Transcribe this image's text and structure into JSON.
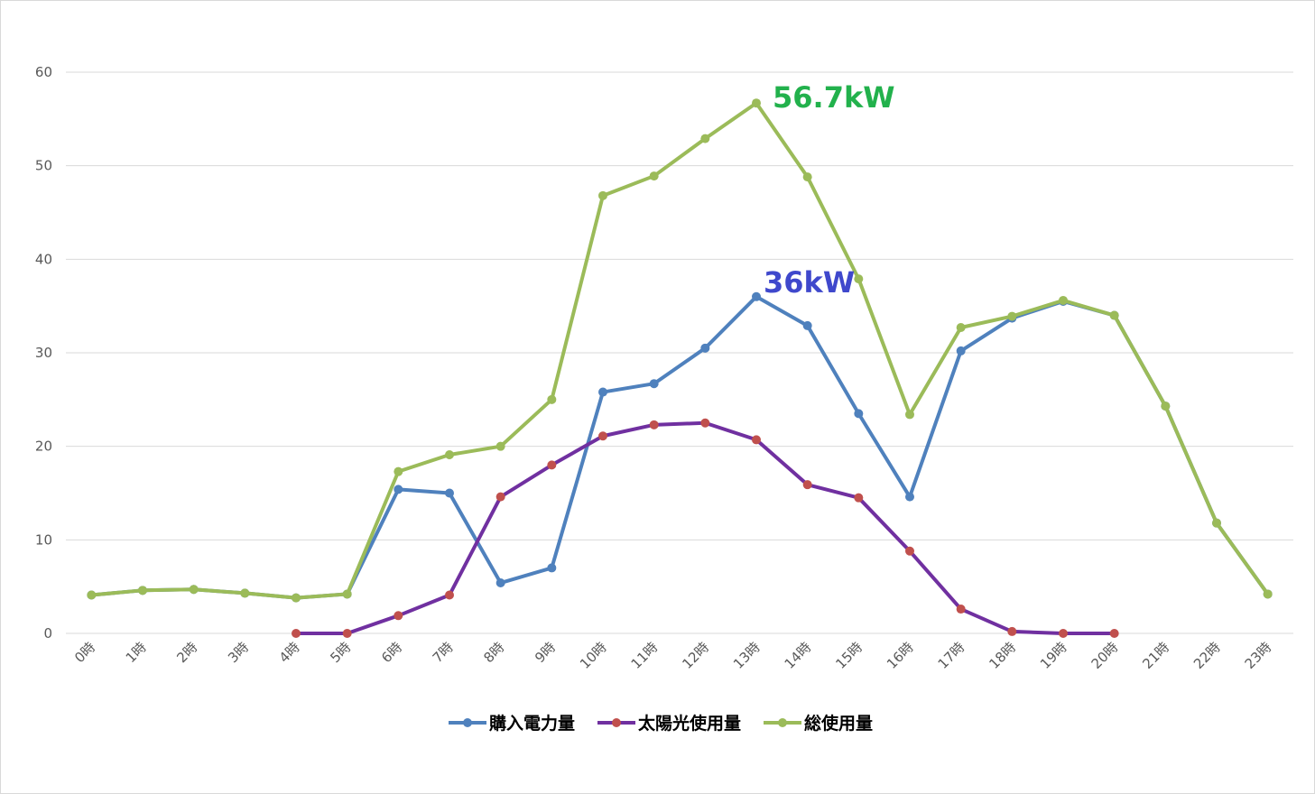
{
  "chart_data": {
    "type": "line",
    "categories": [
      "0時",
      "1時",
      "2時",
      "3時",
      "4時",
      "5時",
      "6時",
      "7時",
      "8時",
      "9時",
      "10時",
      "11時",
      "12時",
      "13時",
      "14時",
      "15時",
      "16時",
      "17時",
      "18時",
      "19時",
      "20時",
      "21時",
      "22時",
      "23時"
    ],
    "ylim": [
      0,
      60
    ],
    "yticks": [
      0,
      10,
      20,
      30,
      40,
      50,
      60
    ],
    "grid": true,
    "legend_position": "bottom",
    "series": [
      {
        "name": "購入電力量",
        "color": "#4f81bd",
        "marker_color": "#4f81bd",
        "values": [
          4.1,
          4.6,
          4.7,
          4.3,
          3.8,
          4.2,
          15.4,
          15.0,
          5.4,
          7.0,
          25.8,
          26.7,
          30.5,
          36.0,
          32.9,
          23.5,
          14.6,
          30.2,
          33.7,
          35.5,
          34.0,
          24.3,
          11.8,
          4.2
        ]
      },
      {
        "name": "太陽光使用量",
        "color": "#7030a0",
        "marker_color": "#c0504d",
        "values": [
          null,
          null,
          null,
          null,
          0.0,
          0.0,
          1.9,
          4.1,
          14.6,
          18.0,
          21.1,
          22.3,
          22.5,
          20.7,
          15.9,
          14.5,
          8.8,
          2.6,
          0.2,
          0.0,
          0.0,
          null,
          null,
          null
        ]
      },
      {
        "name": "総使用量",
        "color": "#9bbb59",
        "marker_color": "#9bbb59",
        "values": [
          4.1,
          4.6,
          4.7,
          4.3,
          3.8,
          4.2,
          17.3,
          19.1,
          20.0,
          25.0,
          46.8,
          48.9,
          52.9,
          56.7,
          48.8,
          37.9,
          23.4,
          32.7,
          33.9,
          35.6,
          34.0,
          24.3,
          11.8,
          4.2
        ]
      }
    ],
    "annotations": [
      {
        "text": "56.7kW",
        "color": "#22b14c",
        "category": "13時",
        "value": 56.7
      },
      {
        "text": "36kW",
        "color": "#3f48cc",
        "category": "13時",
        "value": 36.0
      }
    ]
  }
}
